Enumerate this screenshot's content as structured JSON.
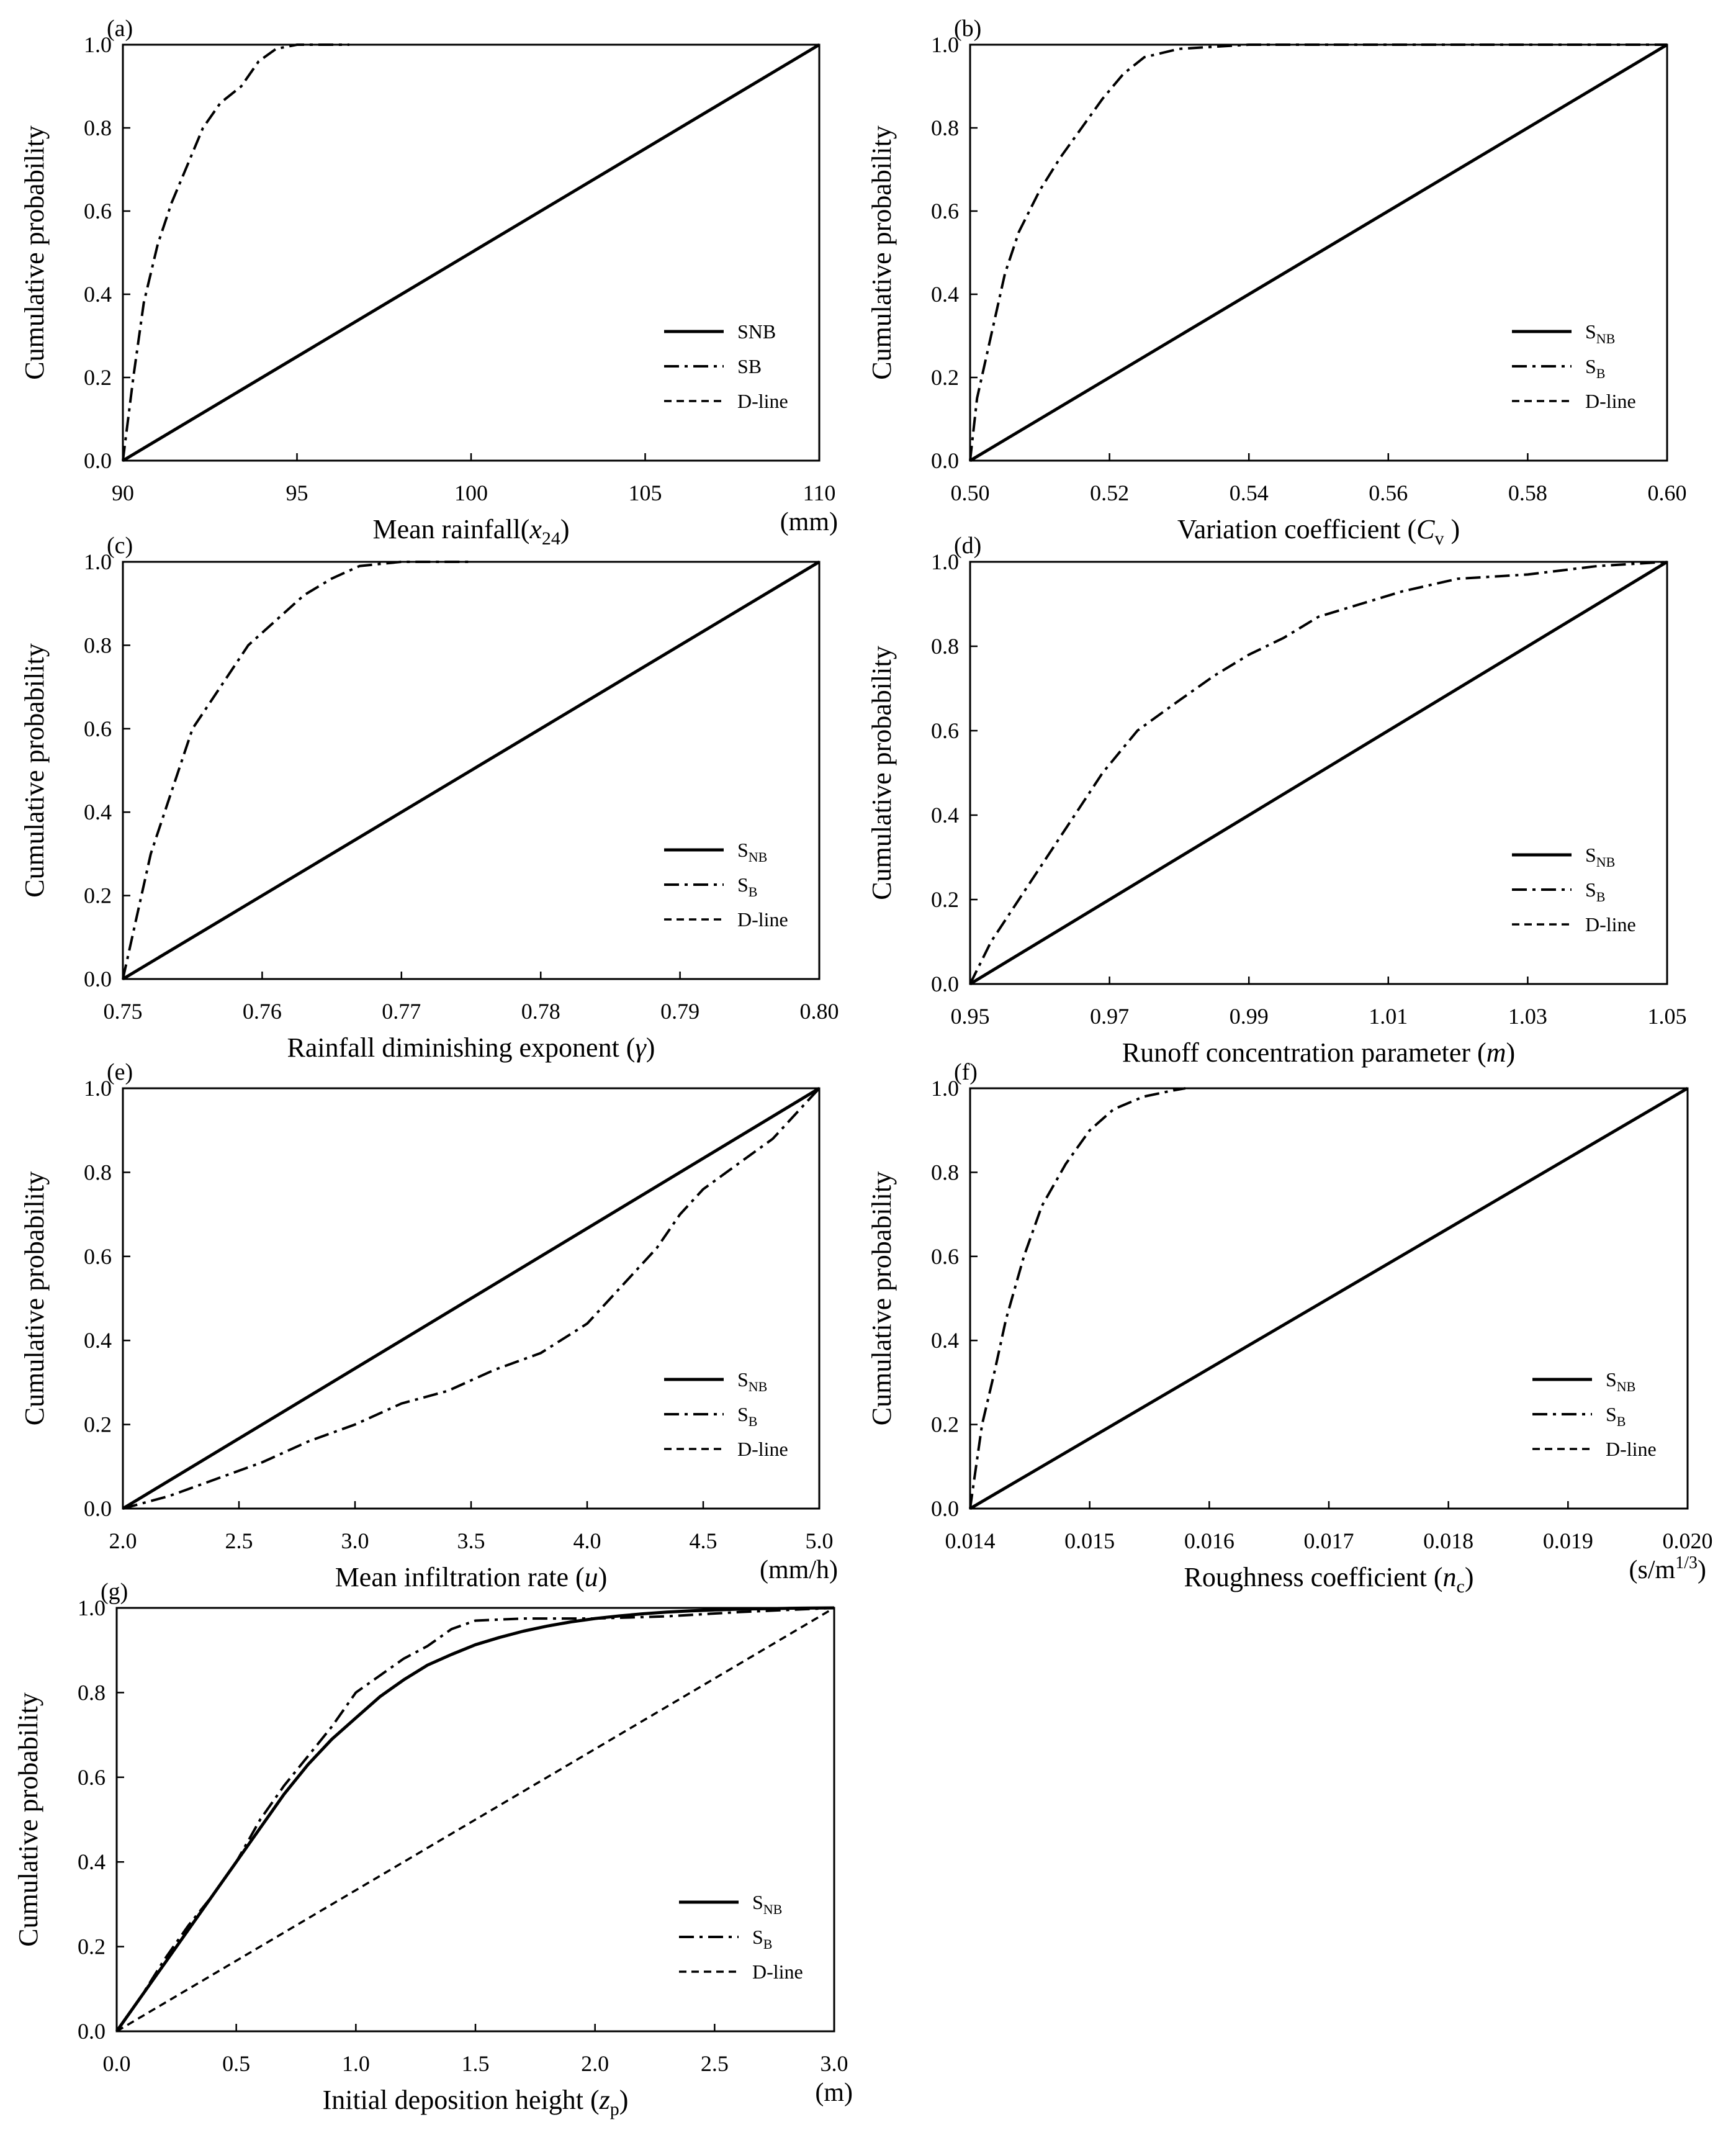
{
  "legend_labels": [
    "S_NB",
    "S_B",
    "D-line"
  ],
  "chart_data": [
    {
      "type": "line",
      "panel": "(a)",
      "xlabel": "Mean rainfall(x̄24)",
      "xlabel_main": "Mean rainfall(",
      "xlabel_symbol": "x",
      "xlabel_sub": "24",
      "xlabel_close": ")",
      "x_unit": "(mm)",
      "ylabel": "Cumulative  probability",
      "xlim": [
        90,
        110
      ],
      "ylim": [
        0,
        1
      ],
      "xticks": [
        "90",
        "95",
        "100",
        "105",
        "110"
      ],
      "yticks": [
        "0.0",
        "0.2",
        "0.4",
        "0.6",
        "0.8",
        "1.0"
      ],
      "legend": [
        "SNB",
        "SB",
        "D-line"
      ],
      "series": [
        {
          "name": "SNB",
          "x": [
            90,
            110
          ],
          "y": [
            0,
            1
          ]
        },
        {
          "name": "SB",
          "x": [
            90.0,
            90.3,
            90.6,
            91.0,
            91.4,
            91.8,
            92.3,
            92.8,
            93.4,
            93.9,
            94.4,
            95.0,
            96.5
          ],
          "y": [
            0.0,
            0.2,
            0.38,
            0.52,
            0.62,
            0.7,
            0.8,
            0.86,
            0.9,
            0.96,
            0.99,
            1.0,
            1.0
          ]
        },
        {
          "name": "D-line",
          "x": [
            90,
            110
          ],
          "y": [
            0,
            1
          ]
        }
      ]
    },
    {
      "type": "line",
      "panel": "(b)",
      "xlabel": "Variation  coefficient (Cv )",
      "xlabel_main": "Variation  coefficient (",
      "xlabel_symbol": "C",
      "xlabel_sub": "v",
      "xlabel_close": " )",
      "x_unit": "",
      "ylabel": "Cumulative  probability",
      "xlim": [
        0.5,
        0.6
      ],
      "ylim": [
        0,
        1
      ],
      "xticks": [
        "0.50",
        "0.52",
        "0.54",
        "0.56",
        "0.58",
        "0.60"
      ],
      "yticks": [
        "0.0",
        "0.2",
        "0.4",
        "0.6",
        "0.8",
        "1.0"
      ],
      "legend": [
        "S_NB",
        "S_B",
        "D-line"
      ],
      "series": [
        {
          "name": "S_NB",
          "x": [
            0.5,
            0.6
          ],
          "y": [
            0,
            1
          ]
        },
        {
          "name": "S_B",
          "x": [
            0.5,
            0.501,
            0.503,
            0.505,
            0.507,
            0.51,
            0.513,
            0.516,
            0.519,
            0.522,
            0.525,
            0.53,
            0.54,
            0.6
          ],
          "y": [
            0.0,
            0.15,
            0.3,
            0.45,
            0.55,
            0.65,
            0.73,
            0.8,
            0.87,
            0.93,
            0.97,
            0.99,
            1.0,
            1.0
          ]
        },
        {
          "name": "D-line",
          "x": [
            0.5,
            0.6
          ],
          "y": [
            0,
            1
          ]
        }
      ]
    },
    {
      "type": "line",
      "panel": "(c)",
      "xlabel": "Rainfall  diminishing  exponent (γ)",
      "xlabel_main": "Rainfall  diminishing  exponent (",
      "xlabel_symbol": "γ",
      "xlabel_sub": "",
      "xlabel_close": ")",
      "x_unit": "",
      "ylabel": "Cumulative  probability",
      "xlim": [
        0.75,
        0.8
      ],
      "ylim": [
        0,
        1
      ],
      "xticks": [
        "0.75",
        "0.76",
        "0.77",
        "0.78",
        "0.79",
        "0.80"
      ],
      "yticks": [
        "0.0",
        "0.2",
        "0.4",
        "0.6",
        "0.8",
        "1.0"
      ],
      "legend": [
        "S_NB",
        "S_B",
        "D-line"
      ],
      "series": [
        {
          "name": "S_NB",
          "x": [
            0.75,
            0.8
          ],
          "y": [
            0,
            1
          ]
        },
        {
          "name": "S_B",
          "x": [
            0.75,
            0.751,
            0.752,
            0.7535,
            0.755,
            0.757,
            0.759,
            0.761,
            0.763,
            0.765,
            0.767,
            0.77,
            0.775
          ],
          "y": [
            0.0,
            0.15,
            0.3,
            0.45,
            0.6,
            0.7,
            0.8,
            0.86,
            0.92,
            0.96,
            0.99,
            1.0,
            1.0
          ]
        },
        {
          "name": "D-line",
          "x": [
            0.75,
            0.8
          ],
          "y": [
            0,
            1
          ]
        }
      ]
    },
    {
      "type": "line",
      "panel": "(d)",
      "xlabel": "Runoff concentration parameter (m)",
      "xlabel_main": "Runoff concentration parameter (",
      "xlabel_symbol": "m",
      "xlabel_sub": "",
      "xlabel_close": ")",
      "x_unit": "",
      "ylabel": "Cumulative  probability",
      "xlim": [
        0.95,
        1.05
      ],
      "ylim": [
        0,
        1
      ],
      "xticks": [
        "0.95",
        "0.97",
        "0.99",
        "1.01",
        "1.03",
        "1.05"
      ],
      "yticks": [
        "0.0",
        "0.2",
        "0.4",
        "0.6",
        "0.8",
        "1.0"
      ],
      "legend": [
        "S_NB",
        "S_B",
        "D-line"
      ],
      "series": [
        {
          "name": "S_NB",
          "x": [
            0.95,
            1.05
          ],
          "y": [
            0,
            1
          ]
        },
        {
          "name": "S_B",
          "x": [
            0.95,
            0.953,
            0.957,
            0.961,
            0.965,
            0.969,
            0.974,
            0.979,
            0.985,
            0.99,
            0.995,
            1.0,
            1.006,
            1.012,
            1.02,
            1.03,
            1.04,
            1.05
          ],
          "y": [
            0.0,
            0.1,
            0.2,
            0.3,
            0.4,
            0.5,
            0.6,
            0.66,
            0.73,
            0.78,
            0.82,
            0.87,
            0.9,
            0.93,
            0.96,
            0.97,
            0.99,
            1.0
          ]
        },
        {
          "name": "D-line",
          "x": [
            0.95,
            1.05
          ],
          "y": [
            0,
            1
          ]
        }
      ]
    },
    {
      "type": "line",
      "panel": "(e)",
      "xlabel": "Mean infiltration  rate (u)",
      "xlabel_main": "Mean infiltration  rate (",
      "xlabel_symbol": "u",
      "xlabel_sub": "",
      "xlabel_close": ")",
      "x_unit": "(mm/h)",
      "ylabel": "Cumulative  probability",
      "xlim": [
        2.0,
        5.0
      ],
      "ylim": [
        0,
        1
      ],
      "xticks": [
        "2.0",
        "2.5",
        "3.0",
        "3.5",
        "4.0",
        "4.5",
        "5.0"
      ],
      "yticks": [
        "0.0",
        "0.2",
        "0.4",
        "0.6",
        "0.8",
        "1.0"
      ],
      "legend": [
        "S_NB",
        "S_B",
        "D-line"
      ],
      "series": [
        {
          "name": "S_NB",
          "x": [
            2.0,
            5.0
          ],
          "y": [
            0,
            1
          ]
        },
        {
          "name": "S_B",
          "x": [
            2.0,
            2.2,
            2.4,
            2.6,
            2.8,
            3.0,
            3.2,
            3.4,
            3.6,
            3.8,
            4.0,
            4.1,
            4.2,
            4.3,
            4.4,
            4.5,
            4.6,
            4.7,
            4.8,
            4.9,
            5.0
          ],
          "y": [
            0.0,
            0.03,
            0.07,
            0.11,
            0.16,
            0.2,
            0.25,
            0.28,
            0.33,
            0.37,
            0.44,
            0.5,
            0.56,
            0.62,
            0.7,
            0.76,
            0.8,
            0.84,
            0.88,
            0.94,
            1.0
          ]
        },
        {
          "name": "D-line",
          "x": [
            2.0,
            5.0
          ],
          "y": [
            0,
            1
          ]
        }
      ]
    },
    {
      "type": "line",
      "panel": "(f)",
      "xlabel": "Roughness coefficient  (nc)",
      "xlabel_main": "Roughness coefficient  (",
      "xlabel_symbol": "n",
      "xlabel_sub": "c",
      "xlabel_close": ")",
      "x_unit": "(s/m1/3)",
      "x_unit_main": "(s/m",
      "x_unit_sup": "1/3",
      "x_unit_close": ")",
      "ylabel": "Cumulative  probability",
      "xlim": [
        0.014,
        0.02
      ],
      "ylim": [
        0,
        1
      ],
      "xticks": [
        "0.014",
        "0.015",
        "0.016",
        "0.017",
        "0.018",
        "0.019",
        "0.020"
      ],
      "yticks": [
        "0.0",
        "0.2",
        "0.4",
        "0.6",
        "0.8",
        "1.0"
      ],
      "legend": [
        "S_NB",
        "S_B",
        "D-line"
      ],
      "series": [
        {
          "name": "S_NB",
          "x": [
            0.014,
            0.02
          ],
          "y": [
            0,
            1
          ]
        },
        {
          "name": "S_B",
          "x": [
            0.014,
            0.01405,
            0.0141,
            0.0142,
            0.0143,
            0.01445,
            0.0146,
            0.0148,
            0.015,
            0.0152,
            0.01545,
            0.0157,
            0.0158
          ],
          "y": [
            0.0,
            0.1,
            0.2,
            0.32,
            0.45,
            0.6,
            0.72,
            0.82,
            0.9,
            0.95,
            0.98,
            0.995,
            1.0
          ]
        },
        {
          "name": "D-line",
          "x": [
            0.014,
            0.02
          ],
          "y": [
            0,
            1
          ]
        }
      ]
    },
    {
      "type": "line",
      "panel": "(g)",
      "xlabel": "Initial  deposition height (zp)",
      "xlabel_main": "Initial  deposition height (",
      "xlabel_symbol": "z",
      "xlabel_sub": "p",
      "xlabel_close": ")",
      "x_unit": "(m)",
      "ylabel": "Cumulative  probability",
      "xlim": [
        0.0,
        3.0
      ],
      "ylim": [
        0,
        1
      ],
      "xticks": [
        "0.0",
        "0.5",
        "1.0",
        "1.5",
        "2.0",
        "2.5",
        "3.0"
      ],
      "yticks": [
        "0.0",
        "0.2",
        "0.4",
        "0.6",
        "0.8",
        "1.0"
      ],
      "legend": [
        "S_NB",
        "S_B",
        "D-line"
      ],
      "series": [
        {
          "name": "S_NB",
          "x": [
            0.0,
            0.1,
            0.2,
            0.3,
            0.4,
            0.5,
            0.6,
            0.7,
            0.8,
            0.9,
            1.0,
            1.1,
            1.2,
            1.3,
            1.4,
            1.5,
            1.6,
            1.7,
            1.8,
            1.9,
            2.0,
            2.1,
            2.2,
            2.3,
            2.4,
            2.5,
            2.6,
            2.7,
            2.8,
            2.9,
            3.0
          ],
          "y": [
            0.0,
            0.08,
            0.16,
            0.24,
            0.32,
            0.4,
            0.48,
            0.56,
            0.63,
            0.69,
            0.74,
            0.79,
            0.83,
            0.865,
            0.89,
            0.913,
            0.93,
            0.945,
            0.957,
            0.967,
            0.975,
            0.981,
            0.986,
            0.99,
            0.993,
            0.995,
            0.997,
            0.998,
            0.999,
            0.9995,
            1.0
          ]
        },
        {
          "name": "S_B",
          "x": [
            0.0,
            0.1,
            0.2,
            0.3,
            0.4,
            0.5,
            0.6,
            0.7,
            0.8,
            0.9,
            1.0,
            1.1,
            1.2,
            1.3,
            1.4,
            1.5,
            1.7,
            2.0,
            2.3,
            2.6,
            3.0
          ],
          "y": [
            0.0,
            0.08,
            0.17,
            0.25,
            0.32,
            0.4,
            0.5,
            0.58,
            0.65,
            0.72,
            0.8,
            0.84,
            0.88,
            0.91,
            0.95,
            0.97,
            0.975,
            0.975,
            0.98,
            0.99,
            1.0
          ]
        },
        {
          "name": "D-line",
          "x": [
            0.0,
            3.0
          ],
          "y": [
            0,
            1
          ]
        }
      ]
    }
  ]
}
